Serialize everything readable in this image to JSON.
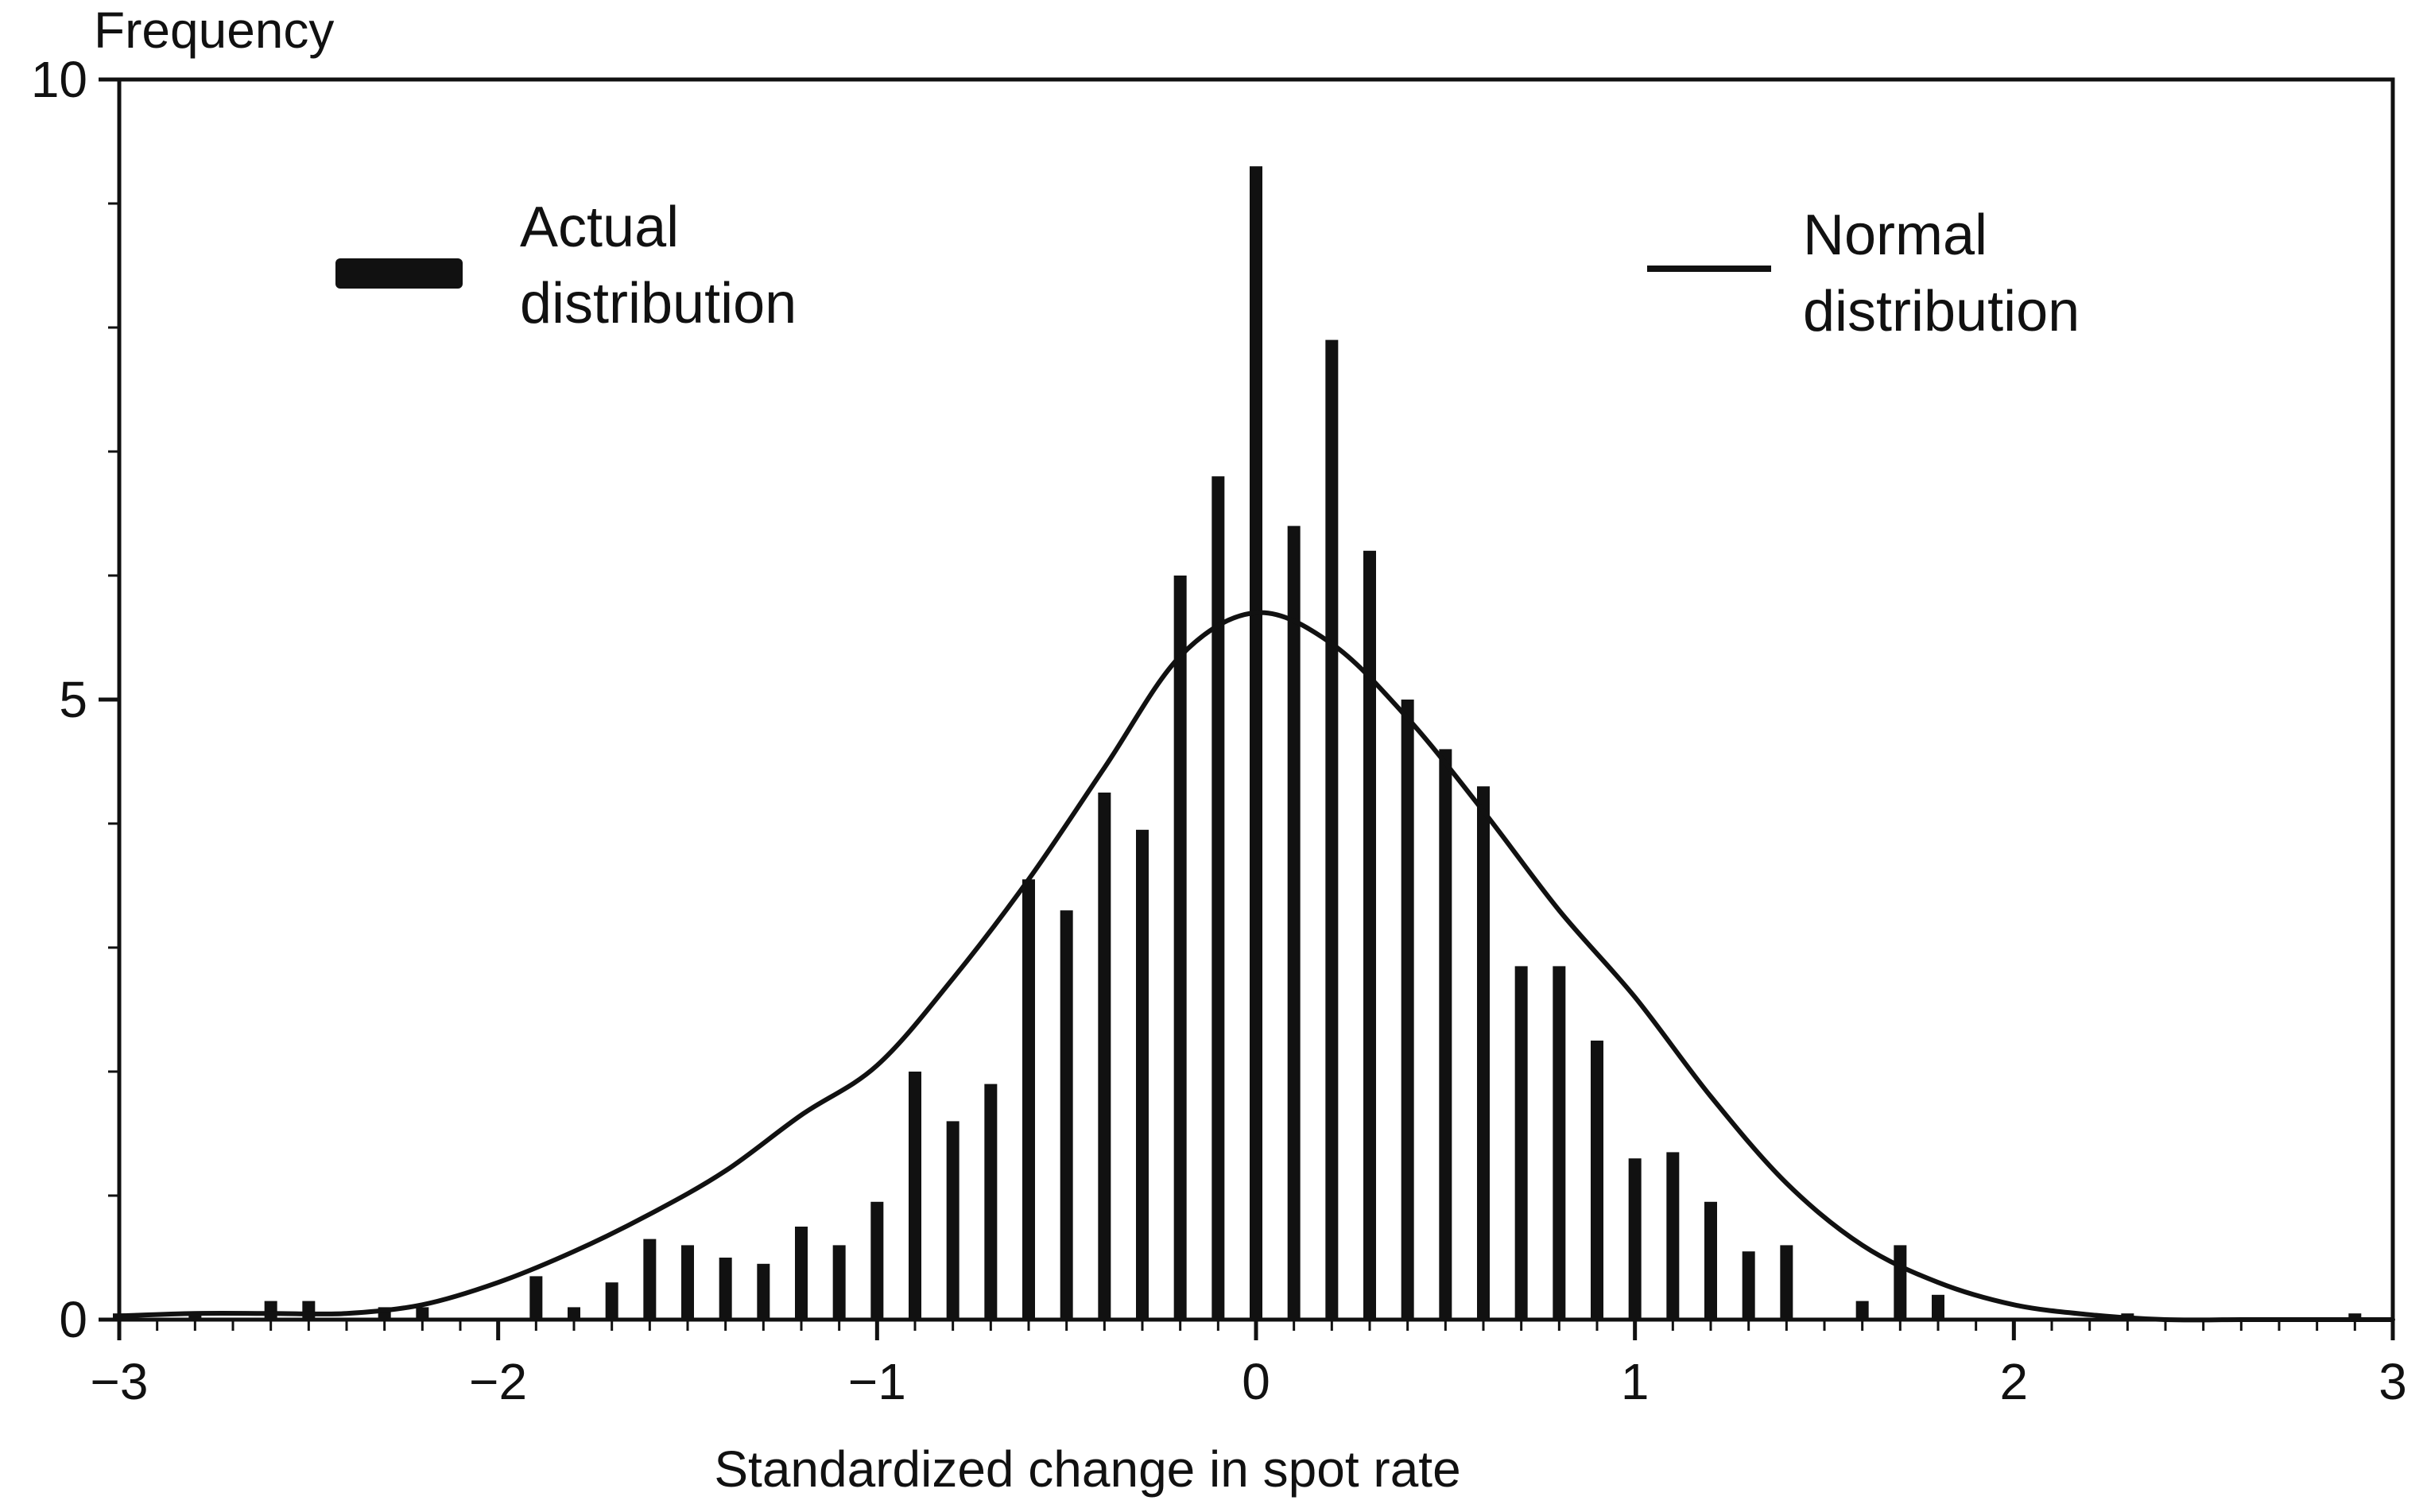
{
  "chart_data": {
    "type": "bar",
    "title": "",
    "ylabel": "Frequency",
    "xlabel": "Standardized change in spot rate",
    "xlim": [
      -3,
      3
    ],
    "ylim": [
      0,
      10
    ],
    "x_ticks": [
      -3,
      -2,
      -1,
      0,
      1,
      2,
      3
    ],
    "x_tick_labels": [
      "−3",
      "−2",
      "−1",
      "0",
      "1",
      "2",
      "3"
    ],
    "y_ticks": [
      0,
      5,
      10
    ],
    "y_tick_labels": [
      "0",
      "5",
      "10"
    ],
    "grid": false,
    "legend_placement": "top",
    "colors": {
      "bars": "#111111",
      "curve": "#111111",
      "frame": "#111111"
    },
    "series": [
      {
        "name": "Actual distribution",
        "kind": "bar",
        "x": [
          -3.0,
          -2.9,
          -2.8,
          -2.7,
          -2.6,
          -2.5,
          -2.4,
          -2.3,
          -2.2,
          -2.1,
          -2.0,
          -1.9,
          -1.8,
          -1.7,
          -1.6,
          -1.5,
          -1.4,
          -1.3,
          -1.2,
          -1.1,
          -1.0,
          -0.9,
          -0.8,
          -0.7,
          -0.6,
          -0.5,
          -0.4,
          -0.3,
          -0.2,
          -0.1,
          0.0,
          0.1,
          0.2,
          0.3,
          0.4,
          0.5,
          0.6,
          0.7,
          0.8,
          0.9,
          1.0,
          1.1,
          1.2,
          1.3,
          1.4,
          1.5,
          1.6,
          1.7,
          1.8,
          1.9,
          2.0,
          2.1,
          2.2,
          2.3,
          2.4,
          2.5,
          2.6,
          2.7,
          2.8,
          2.9,
          3.0
        ],
        "values": [
          0.05,
          0.0,
          0.05,
          0.0,
          0.15,
          0.15,
          0.0,
          0.1,
          0.1,
          0.0,
          0.0,
          0.35,
          0.1,
          0.3,
          0.65,
          0.6,
          0.5,
          0.45,
          0.75,
          0.6,
          0.95,
          2.0,
          1.6,
          1.9,
          3.55,
          3.3,
          4.25,
          3.95,
          6.0,
          6.8,
          9.3,
          6.4,
          7.9,
          6.2,
          5.0,
          4.6,
          4.3,
          2.85,
          2.85,
          2.25,
          1.3,
          1.35,
          0.95,
          0.55,
          0.6,
          0.0,
          0.15,
          0.6,
          0.2,
          0.0,
          0.0,
          0.0,
          0.0,
          0.05,
          0.0,
          0.0,
          0.0,
          0.0,
          0.0,
          0.05,
          0.0
        ]
      },
      {
        "name": "Normal distribution",
        "kind": "line",
        "x": [
          -3.0,
          -2.8,
          -2.6,
          -2.4,
          -2.2,
          -2.0,
          -1.8,
          -1.6,
          -1.4,
          -1.2,
          -1.0,
          -0.8,
          -0.6,
          -0.4,
          -0.2,
          0.0,
          0.2,
          0.4,
          0.6,
          0.8,
          1.0,
          1.2,
          1.4,
          1.6,
          1.8,
          2.0,
          2.2,
          2.4,
          2.6,
          2.8,
          3.0
        ],
        "values": [
          0.03,
          0.05,
          0.05,
          0.05,
          0.12,
          0.3,
          0.55,
          0.85,
          1.2,
          1.65,
          2.05,
          2.75,
          3.55,
          4.45,
          5.35,
          5.7,
          5.45,
          4.85,
          4.1,
          3.3,
          2.6,
          1.8,
          1.1,
          0.6,
          0.3,
          0.12,
          0.04,
          0.0,
          0.0,
          0.0,
          0.0
        ]
      }
    ]
  }
}
